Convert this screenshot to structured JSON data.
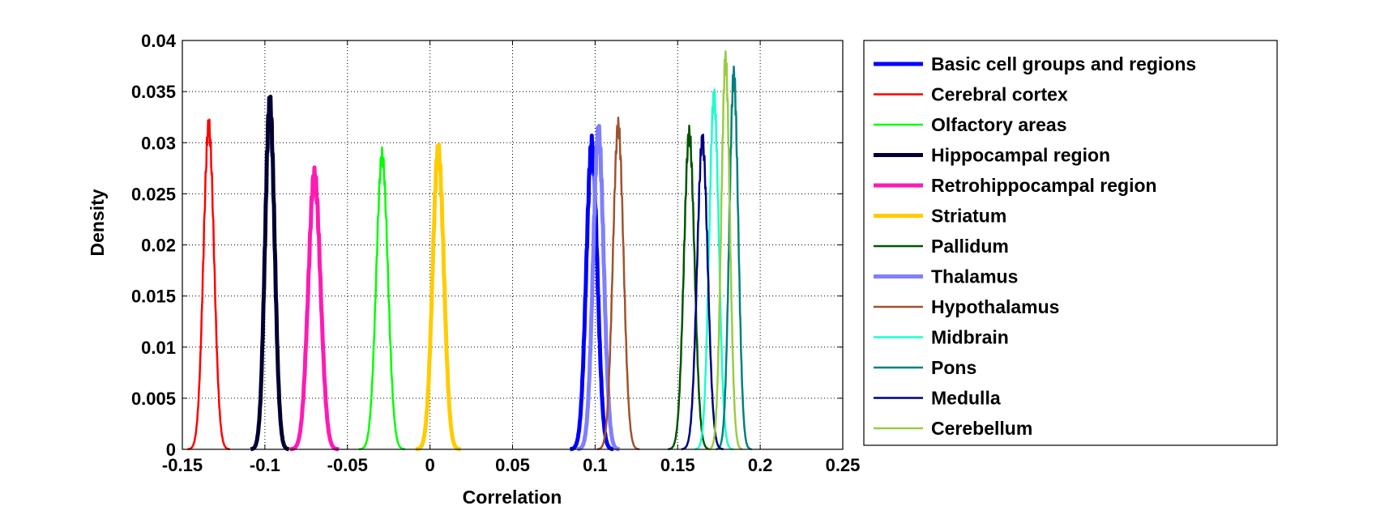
{
  "chart_data": {
    "type": "line",
    "xlabel": "Correlation",
    "ylabel": "Density",
    "xlim": [
      -0.15,
      0.25
    ],
    "ylim": [
      0,
      0.04
    ],
    "xticks": [
      "-0.15",
      "-0.1",
      "-0.05",
      "0",
      "0.05",
      "0.1",
      "0.15",
      "0.2",
      "0.25"
    ],
    "yticks": [
      "0",
      "0.005",
      "0.01",
      "0.015",
      "0.02",
      "0.025",
      "0.03",
      "0.035",
      "0.04"
    ],
    "grid": true,
    "legend_position": "outside-right",
    "series": [
      {
        "name": "Basic cell groups and regions",
        "color": "#0000ff",
        "thick": true,
        "mean": 0.098,
        "sd": 0.0033,
        "peak": 0.0298
      },
      {
        "name": "Cerebral cortex",
        "color": "#ff0000",
        "thick": false,
        "mean": -0.134,
        "sd": 0.0032,
        "peak": 0.0316
      },
      {
        "name": "Olfactory areas",
        "color": "#00ff00",
        "thick": false,
        "mean": -0.029,
        "sd": 0.0035,
        "peak": 0.0287
      },
      {
        "name": "Hippocampal region",
        "color": "#000033",
        "thick": true,
        "mean": -0.097,
        "sd": 0.0029,
        "peak": 0.0338
      },
      {
        "name": "Retrohippocampal region",
        "color": "#ff1ab3",
        "thick": true,
        "mean": -0.07,
        "sd": 0.0037,
        "peak": 0.0268
      },
      {
        "name": "Striatum",
        "color": "#ffcc00",
        "thick": true,
        "mean": 0.005,
        "sd": 0.0034,
        "peak": 0.0292
      },
      {
        "name": "Pallidum",
        "color": "#005500",
        "thick": false,
        "mean": 0.157,
        "sd": 0.0032,
        "peak": 0.0308
      },
      {
        "name": "Thalamus",
        "color": "#7f7fff",
        "thick": true,
        "mean": 0.102,
        "sd": 0.0032,
        "peak": 0.031
      },
      {
        "name": "Hypothalamus",
        "color": "#a0522d",
        "thick": false,
        "mean": 0.114,
        "sd": 0.0032,
        "peak": 0.0316
      },
      {
        "name": "Midbrain",
        "color": "#1affcc",
        "thick": false,
        "mean": 0.172,
        "sd": 0.0029,
        "peak": 0.0345
      },
      {
        "name": "Pons",
        "color": "#008080",
        "thick": false,
        "mean": 0.184,
        "sd": 0.0027,
        "peak": 0.0365
      },
      {
        "name": "Medulla",
        "color": "#000080",
        "thick": false,
        "mean": 0.165,
        "sd": 0.0032,
        "peak": 0.0302
      },
      {
        "name": "Cerebellum",
        "color": "#99cc44",
        "thick": false,
        "mean": 0.179,
        "sd": 0.0026,
        "peak": 0.038
      }
    ]
  }
}
